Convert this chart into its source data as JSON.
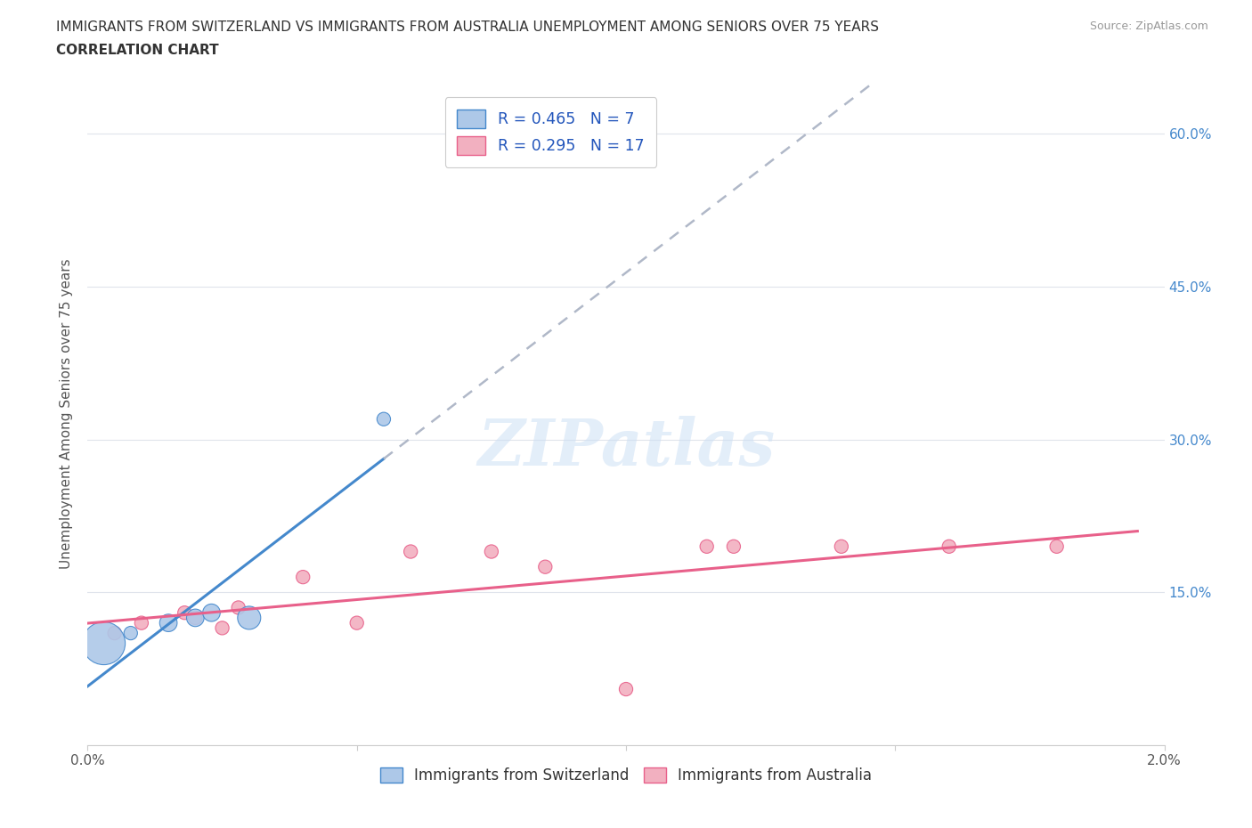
{
  "title_line1": "IMMIGRANTS FROM SWITZERLAND VS IMMIGRANTS FROM AUSTRALIA UNEMPLOYMENT AMONG SENIORS OVER 75 YEARS",
  "title_line2": "CORRELATION CHART",
  "source_text": "Source: ZipAtlas.com",
  "ylabel": "Unemployment Among Seniors over 75 years",
  "xlim": [
    0.0,
    0.02
  ],
  "ylim": [
    0.0,
    0.65
  ],
  "ytick_values": [
    0.0,
    0.15,
    0.3,
    0.45,
    0.6
  ],
  "ytick_labels": [
    "",
    "15.0%",
    "30.0%",
    "45.0%",
    "60.0%"
  ],
  "xtick_values": [
    0.0,
    0.005,
    0.01,
    0.015,
    0.02
  ],
  "xtick_labels": [
    "0.0%",
    "",
    "",
    "",
    "2.0%"
  ],
  "swiss_R": 0.465,
  "swiss_N": 7,
  "aus_R": 0.295,
  "aus_N": 17,
  "swiss_color": "#adc8e8",
  "aus_color": "#f2b0c0",
  "swiss_line_color": "#4488cc",
  "aus_line_color": "#e8608a",
  "trendline_extend_color": "#b0b8c8",
  "swiss_scatter_x": [
    0.0003,
    0.0008,
    0.0015,
    0.002,
    0.0023,
    0.003,
    0.0055
  ],
  "swiss_scatter_y": [
    0.1,
    0.11,
    0.12,
    0.125,
    0.13,
    0.125,
    0.32
  ],
  "swiss_scatter_size": [
    1200,
    120,
    200,
    200,
    200,
    350,
    120
  ],
  "aus_scatter_x": [
    0.0005,
    0.001,
    0.0018,
    0.002,
    0.0025,
    0.0028,
    0.004,
    0.005,
    0.006,
    0.0075,
    0.0085,
    0.01,
    0.0115,
    0.012,
    0.014,
    0.016,
    0.018
  ],
  "aus_scatter_y": [
    0.11,
    0.12,
    0.13,
    0.125,
    0.115,
    0.135,
    0.165,
    0.12,
    0.19,
    0.19,
    0.175,
    0.055,
    0.195,
    0.195,
    0.195,
    0.195,
    0.195
  ],
  "aus_scatter_size": [
    120,
    120,
    120,
    120,
    120,
    120,
    120,
    120,
    120,
    120,
    120,
    120,
    120,
    120,
    120,
    120,
    120
  ],
  "watermark_text": "ZIPatlas",
  "legend_label_swiss": "Immigrants from Switzerland",
  "legend_label_aus": "Immigrants from Australia",
  "bg_color": "#ffffff",
  "grid_color": "#e0e4ec",
  "spine_color": "#cccccc",
  "label_color": "#555555",
  "right_tick_color": "#4488cc",
  "title_color": "#333333",
  "source_color": "#999999"
}
